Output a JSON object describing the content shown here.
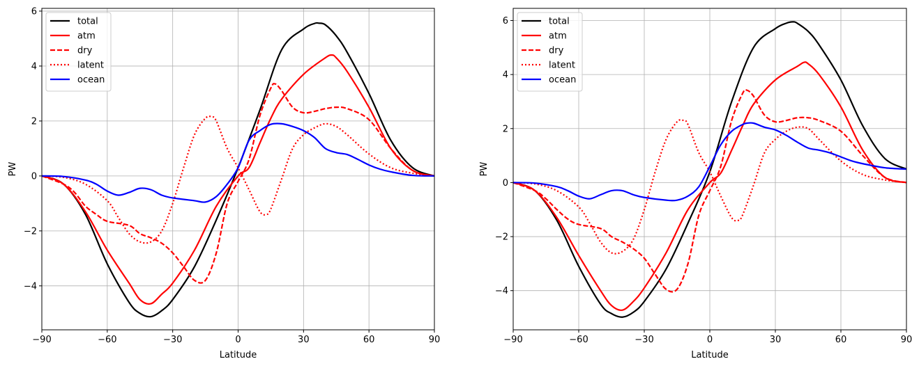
{
  "chart_data": [
    {
      "type": "line",
      "xlabel": "Latitude",
      "ylabel": "PW",
      "xlim": [
        -90,
        90
      ],
      "ylim": [
        -5.6,
        6.1
      ],
      "xticks": [
        -90,
        -60,
        -30,
        0,
        30,
        60,
        90
      ],
      "xtick_labels": [
        "−90",
        "−60",
        "−30",
        "0",
        "30",
        "60",
        "90"
      ],
      "yticks": [
        -4,
        -2,
        0,
        2,
        4,
        6
      ],
      "ytick_labels": [
        "−4",
        "−2",
        "0",
        "2",
        "4",
        "6"
      ],
      "grid": true,
      "legend": "top-left",
      "series": [
        {
          "name": "total",
          "color": "#000000",
          "style": "solid",
          "x": [
            -90,
            -80,
            -70,
            -60,
            -50,
            -45,
            -40,
            -35,
            -30,
            -20,
            -10,
            0,
            10,
            20,
            30,
            35,
            37,
            40,
            45,
            50,
            60,
            70,
            80,
            90
          ],
          "y": [
            0,
            -0.3,
            -1.4,
            -3.2,
            -4.6,
            -5.0,
            -5.12,
            -4.9,
            -4.5,
            -3.3,
            -1.6,
            0.3,
            2.4,
            4.6,
            5.35,
            5.55,
            5.56,
            5.5,
            5.1,
            4.5,
            3.0,
            1.3,
            0.3,
            0
          ]
        },
        {
          "name": "atm",
          "color": "#ff0000",
          "style": "solid",
          "x": [
            -90,
            -80,
            -70,
            -60,
            -50,
            -45,
            -40,
            -35,
            -30,
            -20,
            -10,
            0,
            5,
            10,
            15,
            20,
            30,
            40,
            43,
            45,
            50,
            60,
            70,
            80,
            90
          ],
          "y": [
            0,
            -0.3,
            -1.3,
            -2.7,
            -3.9,
            -4.5,
            -4.65,
            -4.3,
            -3.9,
            -2.7,
            -1.1,
            0,
            0.3,
            1.2,
            2.1,
            2.8,
            3.7,
            4.3,
            4.4,
            4.3,
            3.8,
            2.5,
            1.0,
            0.2,
            0
          ]
        },
        {
          "name": "dry",
          "color": "#ff0000",
          "style": "dashed",
          "x": [
            -90,
            -80,
            -75,
            -70,
            -65,
            -60,
            -50,
            -45,
            -40,
            -35,
            -30,
            -25,
            -20,
            -15,
            -10,
            -5,
            0,
            5,
            10,
            15,
            17,
            20,
            25,
            30,
            35,
            40,
            45,
            50,
            60,
            70,
            80,
            90
          ],
          "y": [
            0,
            -0.3,
            -0.6,
            -1.1,
            -1.4,
            -1.65,
            -1.8,
            -2.1,
            -2.25,
            -2.45,
            -2.8,
            -3.3,
            -3.8,
            -3.8,
            -2.8,
            -1.0,
            -0.2,
            0.6,
            2.2,
            3.2,
            3.35,
            3.1,
            2.5,
            2.3,
            2.35,
            2.45,
            2.5,
            2.45,
            2.05,
            1.0,
            0.2,
            0
          ]
        },
        {
          "name": "latent",
          "color": "#ff0000",
          "style": "dotted",
          "x": [
            -90,
            -80,
            -70,
            -60,
            -55,
            -50,
            -45,
            -40,
            -35,
            -30,
            -25,
            -20,
            -15,
            -12,
            -10,
            -5,
            0,
            5,
            10,
            13,
            15,
            20,
            25,
            30,
            35,
            40,
            45,
            50,
            60,
            70,
            80,
            90
          ],
          "y": [
            0,
            -0.05,
            -0.3,
            -0.9,
            -1.5,
            -2.1,
            -2.4,
            -2.4,
            -2.0,
            -1.0,
            0.3,
            1.5,
            2.1,
            2.15,
            2.0,
            1.0,
            0.3,
            -0.5,
            -1.3,
            -1.4,
            -1.2,
            -0.1,
            1.0,
            1.5,
            1.75,
            1.9,
            1.8,
            1.5,
            0.8,
            0.3,
            0.1,
            0
          ]
        },
        {
          "name": "ocean",
          "color": "#0000ff",
          "style": "solid",
          "x": [
            -90,
            -80,
            -70,
            -65,
            -60,
            -55,
            -50,
            -45,
            -40,
            -35,
            -30,
            -20,
            -15,
            -10,
            -5,
            0,
            5,
            10,
            15,
            20,
            25,
            30,
            35,
            40,
            45,
            50,
            55,
            60,
            65,
            70,
            80,
            90
          ],
          "y": [
            0,
            -0.02,
            -0.15,
            -0.3,
            -0.55,
            -0.7,
            -0.6,
            -0.45,
            -0.5,
            -0.7,
            -0.8,
            -0.9,
            -0.95,
            -0.75,
            -0.3,
            0.3,
            1.3,
            1.65,
            1.88,
            1.9,
            1.8,
            1.65,
            1.4,
            1.0,
            0.85,
            0.78,
            0.6,
            0.4,
            0.25,
            0.15,
            0.02,
            0
          ]
        }
      ]
    },
    {
      "type": "line",
      "xlabel": "Latitude",
      "ylabel": "PW",
      "xlim": [
        -90,
        90
      ],
      "ylim": [
        -5.45,
        6.45
      ],
      "xticks": [
        -90,
        -60,
        -30,
        0,
        30,
        60,
        90
      ],
      "xtick_labels": [
        "−90",
        "−60",
        "−30",
        "0",
        "30",
        "60",
        "90"
      ],
      "yticks": [
        -4,
        -2,
        0,
        2,
        4,
        6
      ],
      "ytick_labels": [
        "−4",
        "−2",
        "0",
        "2",
        "4",
        "6"
      ],
      "grid": true,
      "legend": "top-left",
      "series": [
        {
          "name": "total",
          "color": "#000000",
          "style": "solid",
          "x": [
            -90,
            -80,
            -70,
            -60,
            -50,
            -45,
            -40,
            -35,
            -30,
            -20,
            -10,
            0,
            10,
            20,
            30,
            35,
            38,
            40,
            45,
            50,
            60,
            70,
            80,
            90
          ],
          "y": [
            0,
            -0.3,
            -1.4,
            -3.1,
            -4.5,
            -4.85,
            -4.98,
            -4.8,
            -4.4,
            -3.2,
            -1.5,
            0.4,
            3.0,
            5.0,
            5.7,
            5.9,
            5.95,
            5.9,
            5.6,
            5.1,
            3.8,
            2.1,
            0.9,
            0.5
          ]
        },
        {
          "name": "atm",
          "color": "#ff0000",
          "style": "solid",
          "x": [
            -90,
            -80,
            -70,
            -60,
            -50,
            -45,
            -40,
            -35,
            -30,
            -20,
            -10,
            0,
            5,
            10,
            15,
            20,
            30,
            40,
            43,
            45,
            50,
            60,
            70,
            80,
            90
          ],
          "y": [
            0,
            -0.3,
            -1.3,
            -2.7,
            -4.0,
            -4.55,
            -4.72,
            -4.4,
            -3.9,
            -2.6,
            -1.0,
            0,
            0.35,
            1.2,
            2.1,
            2.9,
            3.8,
            4.3,
            4.45,
            4.4,
            4.0,
            2.8,
            1.2,
            0.2,
            0
          ]
        },
        {
          "name": "dry",
          "color": "#ff0000",
          "style": "dashed",
          "x": [
            -90,
            -80,
            -75,
            -70,
            -65,
            -60,
            -50,
            -45,
            -40,
            -35,
            -30,
            -25,
            -20,
            -15,
            -10,
            -5,
            0,
            5,
            10,
            15,
            17,
            20,
            25,
            30,
            35,
            40,
            45,
            50,
            60,
            70,
            80,
            90
          ],
          "y": [
            0,
            -0.3,
            -0.6,
            -1.0,
            -1.35,
            -1.55,
            -1.7,
            -2.0,
            -2.2,
            -2.45,
            -2.8,
            -3.4,
            -3.95,
            -3.95,
            -3.0,
            -1.2,
            -0.3,
            0.6,
            2.3,
            3.3,
            3.42,
            3.2,
            2.5,
            2.25,
            2.3,
            2.4,
            2.4,
            2.3,
            1.9,
            1.0,
            0.2,
            0
          ]
        },
        {
          "name": "latent",
          "color": "#ff0000",
          "style": "dotted",
          "x": [
            -90,
            -80,
            -70,
            -60,
            -55,
            -50,
            -45,
            -40,
            -35,
            -30,
            -25,
            -20,
            -15,
            -12,
            -10,
            -5,
            0,
            5,
            10,
            13,
            15,
            20,
            25,
            30,
            35,
            40,
            45,
            50,
            60,
            70,
            80,
            90
          ],
          "y": [
            0,
            -0.05,
            -0.3,
            -0.9,
            -1.5,
            -2.2,
            -2.6,
            -2.55,
            -2.1,
            -1.0,
            0.4,
            1.6,
            2.25,
            2.3,
            2.15,
            1.1,
            0.4,
            -0.5,
            -1.3,
            -1.4,
            -1.2,
            -0.1,
            1.1,
            1.6,
            1.9,
            2.05,
            2.0,
            1.6,
            0.8,
            0.3,
            0.1,
            0
          ]
        },
        {
          "name": "ocean",
          "color": "#0000ff",
          "style": "solid",
          "x": [
            -90,
            -80,
            -70,
            -65,
            -60,
            -55,
            -50,
            -45,
            -40,
            -35,
            -30,
            -20,
            -15,
            -10,
            -5,
            0,
            5,
            10,
            15,
            17,
            20,
            25,
            30,
            35,
            40,
            45,
            50,
            55,
            60,
            65,
            70,
            80,
            90
          ],
          "y": [
            0,
            -0.02,
            -0.15,
            -0.3,
            -0.5,
            -0.6,
            -0.45,
            -0.3,
            -0.3,
            -0.45,
            -0.55,
            -0.65,
            -0.65,
            -0.5,
            -0.15,
            0.6,
            1.4,
            1.9,
            2.15,
            2.2,
            2.2,
            2.05,
            1.95,
            1.75,
            1.5,
            1.28,
            1.2,
            1.1,
            0.95,
            0.8,
            0.7,
            0.55,
            0.5
          ]
        }
      ]
    }
  ]
}
